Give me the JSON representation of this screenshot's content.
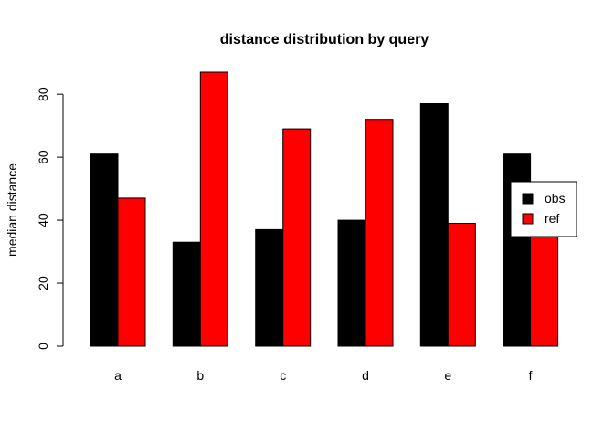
{
  "chart_data": {
    "type": "bar",
    "title": "distance distribution by query",
    "xlabel": "",
    "ylabel": "median distance",
    "categories": [
      "a",
      "b",
      "c",
      "d",
      "e",
      "f"
    ],
    "series": [
      {
        "name": "obs",
        "color": "#000000",
        "values": [
          61,
          33,
          37,
          40,
          77,
          61
        ]
      },
      {
        "name": "ref",
        "color": "#ff0000",
        "values": [
          47,
          87,
          69,
          72,
          39,
          36
        ]
      }
    ],
    "ylim": [
      0,
      87
    ],
    "yticks": [
      0,
      20,
      40,
      60,
      80
    ],
    "grid": false,
    "legend_position": "right"
  }
}
